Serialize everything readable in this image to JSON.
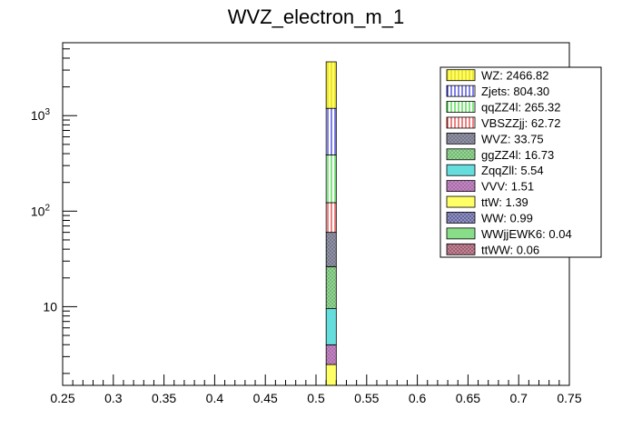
{
  "chart_data": {
    "type": "bar",
    "stacked": true,
    "title": "WVZ_electron_m_1",
    "xlabel": "",
    "ylabel": "",
    "xlim": [
      0.25,
      0.75
    ],
    "ylim": [
      1.5,
      5800
    ],
    "yscale": "log",
    "bin": [
      0.51,
      0.52
    ],
    "x_ticks": [
      "0.25",
      "0.3",
      "0.35",
      "0.4",
      "0.45",
      "0.5",
      "0.55",
      "0.6",
      "0.65",
      "0.7",
      "0.75"
    ],
    "y_ticks": [
      {
        "value": 10,
        "label": "10",
        "exp": ""
      },
      {
        "value": 100,
        "label": "10",
        "exp": "2"
      },
      {
        "value": 1000,
        "label": "10",
        "exp": "3"
      }
    ],
    "legend_position": "top-right",
    "series": [
      {
        "name": "WZ",
        "value": 2466.82,
        "label": "WZ: 2466.82",
        "color": "#ffff66",
        "pattern": "vlines",
        "stroke": "#d8c800"
      },
      {
        "name": "Zjets",
        "value": 804.3,
        "label": "Zjets: 804.30",
        "color": "#ffffff",
        "pattern": "vlines",
        "stroke": "#0000cc"
      },
      {
        "name": "qqZZ4l",
        "value": 265.32,
        "label": "qqZZ4l: 265.32",
        "color": "#ffffff",
        "pattern": "vlines",
        "stroke": "#00cc00"
      },
      {
        "name": "VBSZZjj",
        "value": 62.72,
        "label": "VBSZZjj: 62.72",
        "color": "#ffffff",
        "pattern": "vlines",
        "stroke": "#dd0000"
      },
      {
        "name": "WVZ",
        "value": 33.75,
        "label": "WVZ: 33.75",
        "color": "#9999aa",
        "pattern": "cross",
        "stroke": "#6a6a80"
      },
      {
        "name": "ggZZ4l",
        "value": 16.73,
        "label": "ggZZ4l: 16.73",
        "color": "#99dd99",
        "pattern": "cross",
        "stroke": "#6aa86a"
      },
      {
        "name": "ZqqZll",
        "value": 5.54,
        "label": "ZqqZll: 5.54",
        "color": "#66dddd",
        "pattern": "solid",
        "stroke": "#000000"
      },
      {
        "name": "VVV",
        "value": 1.51,
        "label": "VVV: 1.51",
        "color": "#cc88cc",
        "pattern": "cross",
        "stroke": "#996699"
      },
      {
        "name": "ttW",
        "value": 1.39,
        "label": "ttW: 1.39",
        "color": "#ffff66",
        "pattern": "solid",
        "stroke": "#000000"
      },
      {
        "name": "WW",
        "value": 0.99,
        "label": "WW: 0.99",
        "color": "#9999cc",
        "pattern": "cross",
        "stroke": "#555588"
      },
      {
        "name": "WWjjEWK6",
        "value": 0.04,
        "label": "WWjjEWK6: 0.04",
        "color": "#88dd88",
        "pattern": "solid",
        "stroke": "#000000"
      },
      {
        "name": "ttWW",
        "value": 0.06,
        "label": "ttWW: 0.06",
        "color": "#cc8899",
        "pattern": "cross",
        "stroke": "#885566"
      }
    ]
  }
}
